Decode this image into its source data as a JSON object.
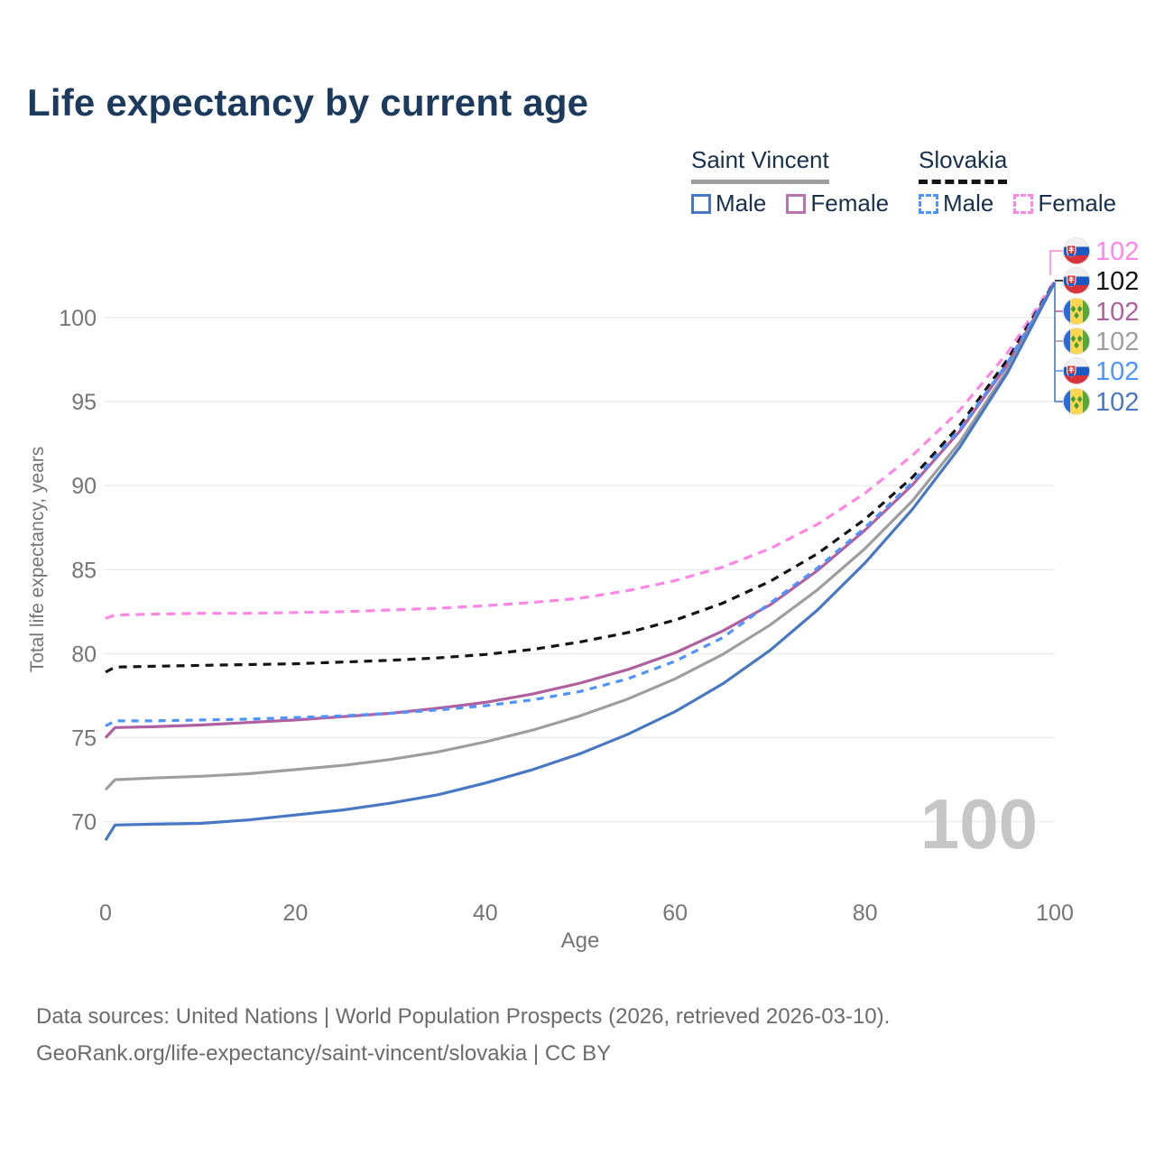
{
  "title": "Life expectancy by current age",
  "legend": {
    "groups": [
      {
        "name": "Saint Vincent",
        "line_style": "solid",
        "underline_color": "#9e9e9e",
        "items": [
          {
            "label": "Male",
            "color": "#4878C4",
            "dashed": false
          },
          {
            "label": "Female",
            "color": "#B673AE",
            "dashed": false
          }
        ]
      },
      {
        "name": "Slovakia",
        "line_style": "dashed",
        "underline_color": "#141414",
        "items": [
          {
            "label": "Male",
            "color": "#4D94FF",
            "dashed": true
          },
          {
            "label": "Female",
            "color": "#FF85E6",
            "dashed": true
          }
        ]
      }
    ]
  },
  "chart_data": {
    "type": "line",
    "title": "Life expectancy by current age",
    "xlabel": "Age",
    "ylabel": "Total life expectancy, years",
    "xlim": [
      0,
      100
    ],
    "ylim": [
      68,
      103
    ],
    "xticks": [
      0,
      20,
      40,
      60,
      80,
      100
    ],
    "yticks": [
      70,
      75,
      80,
      85,
      90,
      95,
      100
    ],
    "grid": "horizontal",
    "legend_position": "top-right",
    "watermark": "100",
    "x": [
      0,
      1,
      5,
      10,
      15,
      20,
      25,
      30,
      35,
      40,
      45,
      50,
      55,
      60,
      65,
      70,
      75,
      80,
      85,
      90,
      95,
      100
    ],
    "series": [
      {
        "name": "Slovakia Female",
        "country": "slovakia",
        "flag": "slovakia",
        "color": "#FF85E6",
        "dash": "10 7",
        "end_label": "102",
        "values": [
          82.1,
          82.3,
          82.35,
          82.4,
          82.4,
          82.45,
          82.5,
          82.6,
          82.7,
          82.85,
          83.05,
          83.3,
          83.75,
          84.35,
          85.15,
          86.25,
          87.7,
          89.55,
          91.8,
          94.5,
          97.9,
          102.2
        ]
      },
      {
        "name": "Slovakia Both sexes",
        "country": "slovakia",
        "flag": "slovakia",
        "color": "#141414",
        "dash": "9 7",
        "end_label": "102",
        "values": [
          78.9,
          79.2,
          79.25,
          79.3,
          79.35,
          79.4,
          79.5,
          79.6,
          79.75,
          79.95,
          80.25,
          80.7,
          81.25,
          82.0,
          83.0,
          84.3,
          85.95,
          88.0,
          90.5,
          93.6,
          97.5,
          102.15
        ]
      },
      {
        "name": "Saint Vincent Female",
        "country": "saint-vincent",
        "flag": "saint-vincent",
        "color": "#B0609F",
        "dash": null,
        "end_label": "102",
        "values": [
          75.0,
          75.6,
          75.65,
          75.75,
          75.9,
          76.05,
          76.25,
          76.45,
          76.75,
          77.1,
          77.6,
          78.25,
          79.05,
          80.05,
          81.35,
          82.9,
          84.95,
          87.35,
          90.05,
          93.25,
          97.2,
          102.1
        ]
      },
      {
        "name": "Saint Vincent Both sexes",
        "country": "saint-vincent",
        "flag": "saint-vincent",
        "color": "#9E9E9E",
        "dash": null,
        "end_label": "102",
        "values": [
          71.9,
          72.5,
          72.6,
          72.7,
          72.85,
          73.1,
          73.35,
          73.7,
          74.15,
          74.75,
          75.45,
          76.3,
          77.3,
          78.5,
          79.95,
          81.7,
          83.8,
          86.25,
          89.1,
          92.6,
          96.9,
          102.1
        ]
      },
      {
        "name": "Slovakia Male",
        "country": "slovakia",
        "flag": "slovakia",
        "color": "#4D94FF",
        "dash": "8 7",
        "end_label": "102",
        "values": [
          75.7,
          76.0,
          76.0,
          76.05,
          76.1,
          76.2,
          76.3,
          76.45,
          76.65,
          76.9,
          77.25,
          77.75,
          78.5,
          79.55,
          80.95,
          83.0,
          85.1,
          87.5,
          90.2,
          93.35,
          97.3,
          102.1
        ]
      },
      {
        "name": "Saint Vincent Male",
        "country": "saint-vincent",
        "flag": "saint-vincent",
        "color": "#4878C4",
        "dash": null,
        "end_label": "102",
        "values": [
          68.9,
          69.8,
          69.85,
          69.9,
          70.1,
          70.4,
          70.7,
          71.1,
          71.6,
          72.3,
          73.1,
          74.05,
          75.2,
          76.55,
          78.2,
          80.2,
          82.6,
          85.4,
          88.6,
          92.3,
          96.7,
          102.1
        ]
      }
    ],
    "colors": {
      "grid": "#ececec",
      "axis_text": "#757575",
      "watermark": "#c6c6c6"
    }
  },
  "footer": {
    "line1": "Data sources: United Nations | World Population Prospects (2026, retrieved 2026-03-10).",
    "line2": "GeoRank.org/life-expectancy/saint-vincent/slovakia | CC BY"
  }
}
